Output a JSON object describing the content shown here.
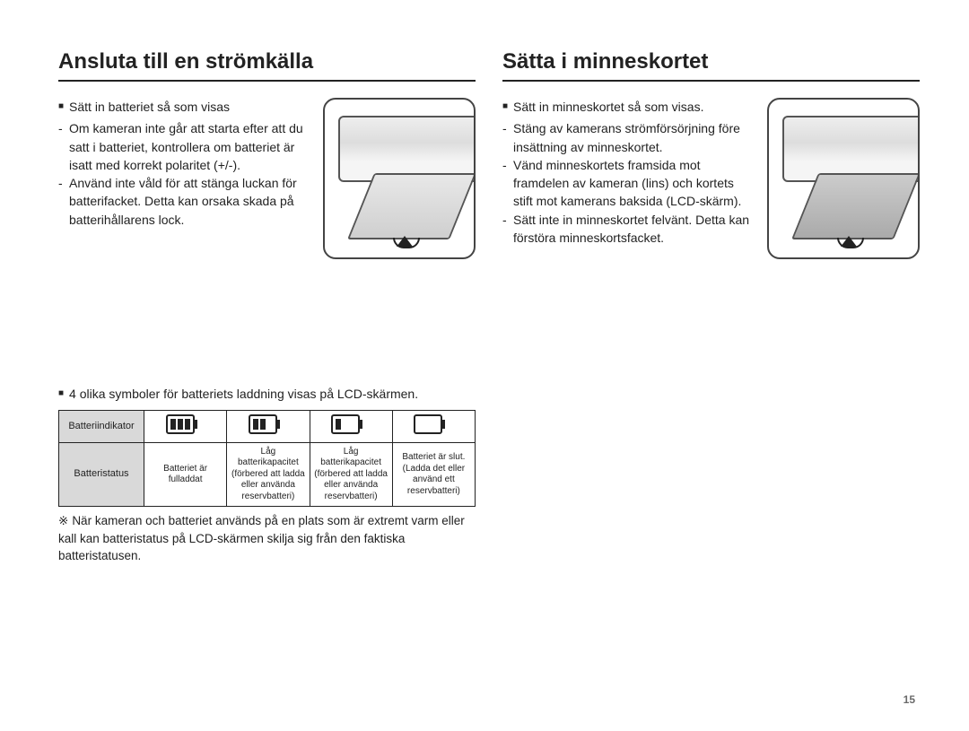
{
  "page_number": "15",
  "left": {
    "title": "Ansluta till en strömkälla",
    "intro": "Sätt in batteriet så som visas",
    "sub_items": [
      "Om kameran inte går att starta efter att du satt i batteriet, kontrollera om batteriet är isatt med korrekt polaritet (+/-).",
      "Använd inte våld för att stänga luckan för batterifacket. Detta kan orsaka skada på batterihållarens lock."
    ],
    "mid_line": "4 olika symboler för batteriets laddning visas på LCD-skärmen.",
    "table": {
      "row1_head": "Batteriindikator",
      "row2_head": "Batteristatus",
      "cells": [
        "Batteriet är fulladdat",
        "Låg batterikapacitet (förbered att ladda eller använda reservbatteri)",
        "Låg batterikapacitet (förbered att ladda eller använda reservbatteri)",
        "Batteriet är slut. (Ladda det eller använd ett reservbatteri)"
      ],
      "battery_levels": [
        3,
        2,
        1,
        0
      ],
      "head_bg": "#d9d9d9",
      "border_color": "#222222"
    },
    "note_marker": "※",
    "note": "När kameran och batteriet används på en plats som är extremt varm eller kall kan batteristatus på LCD-skärmen skilja sig från den faktiska batteristatusen."
  },
  "right": {
    "title": "Sätta i minneskortet",
    "intro": "Sätt in minneskortet så som visas.",
    "sub_items": [
      "Stäng av kamerans strömförsörjning före insättning av minneskortet.",
      "Vänd minneskortets framsida mot framdelen av kameran (lins) och kortets stift mot kamerans baksida (LCD-skärm).",
      "Sätt inte in minneskortet felvänt. Detta kan förstöra minneskortsfacket."
    ]
  },
  "styling": {
    "text_color": "#222222",
    "background": "#ffffff",
    "title_fontsize": 24,
    "body_fontsize": 14,
    "table_fontsize": 10,
    "illustration_border_radius": 14
  }
}
